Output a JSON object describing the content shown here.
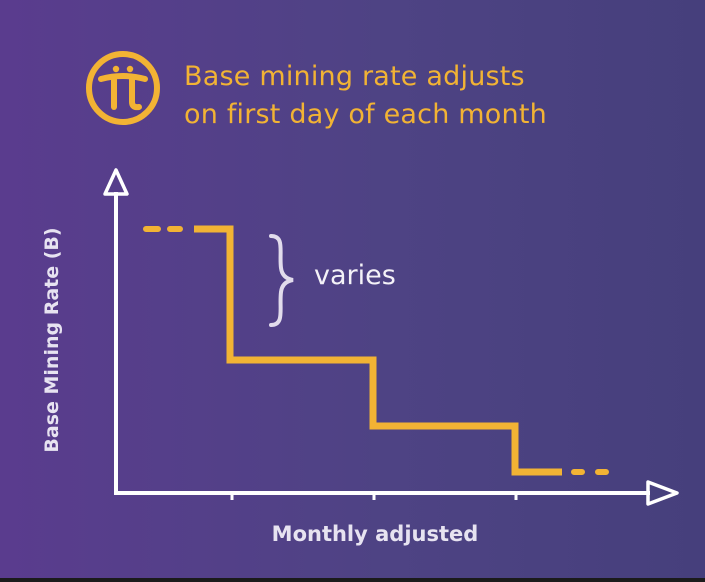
{
  "title": {
    "line1": "Base mining rate adjusts",
    "line2": "on first day of each month"
  },
  "axes": {
    "ylabel": "Base Mining Rate (B)",
    "xlabel": "Monthly adjusted"
  },
  "annotation": {
    "text": "varies"
  },
  "colors": {
    "accent": "#f2b334",
    "axis": "#ffffff",
    "background_left": "#5a3c8e",
    "background_right": "#463f7c"
  },
  "icons": {
    "logo": "pi-coin-logo-icon"
  }
}
